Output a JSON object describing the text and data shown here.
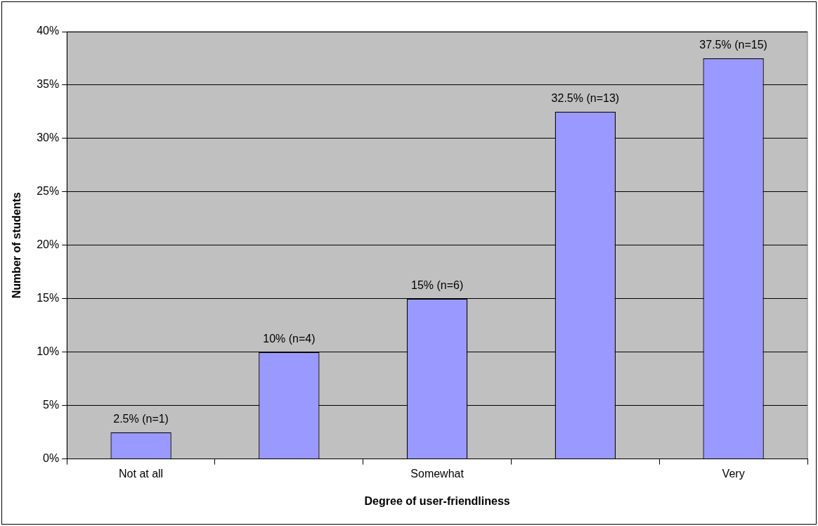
{
  "chart_data": {
    "type": "bar",
    "xlabel": "Degree of user-friendliness",
    "ylabel": "Number of students",
    "categories": [
      "Not at all",
      null,
      "Somewhat",
      null,
      "Very"
    ],
    "values": [
      2.5,
      10,
      15,
      32.5,
      37.5
    ],
    "value_labels": [
      "2.5% (n=1)",
      "10% (n=4)",
      "15% (n=6)",
      "32.5% (n=13)",
      "37.5% (n=15)"
    ],
    "color": "#9999ff",
    "ylim": [
      0,
      40
    ],
    "yticks": [
      {
        "value": 0,
        "label": "0%"
      },
      {
        "value": 5,
        "label": "5%"
      },
      {
        "value": 10,
        "label": "10%"
      },
      {
        "value": 15,
        "label": "15%"
      },
      {
        "value": 20,
        "label": "20%"
      },
      {
        "value": 25,
        "label": "25%"
      },
      {
        "value": 30,
        "label": "30%"
      },
      {
        "value": 35,
        "label": "35%"
      },
      {
        "value": 40,
        "label": "40%"
      }
    ],
    "grid": "y",
    "legend": false
  }
}
